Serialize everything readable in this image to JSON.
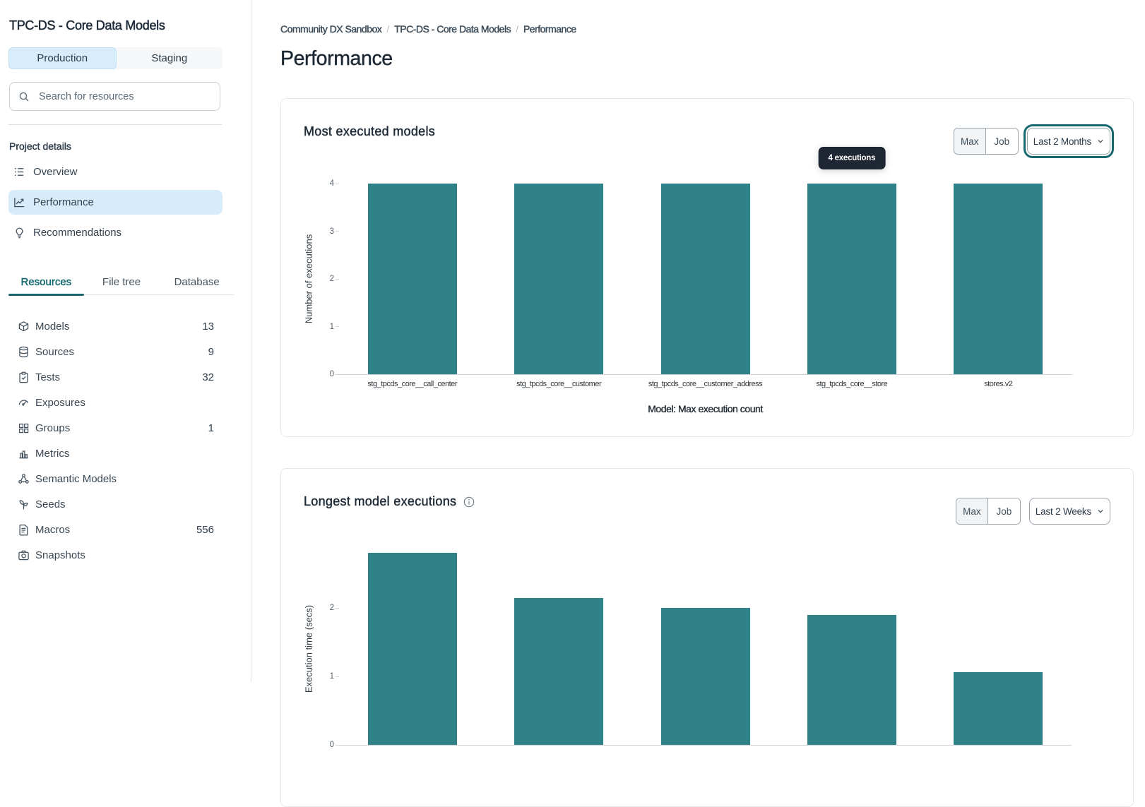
{
  "sidebar": {
    "project_title": "TPC-DS - Core Data Models",
    "env_tabs": [
      {
        "label": "Production",
        "active": true
      },
      {
        "label": "Staging",
        "active": false
      }
    ],
    "search": {
      "placeholder": "Search for resources"
    },
    "section_label": "Project details",
    "nav": [
      {
        "label": "Overview",
        "icon": "overview-icon",
        "active": false
      },
      {
        "label": "Performance",
        "icon": "performance-icon",
        "active": true
      },
      {
        "label": "Recommendations",
        "icon": "lightbulb-icon",
        "active": false
      }
    ],
    "resource_tabs": [
      {
        "label": "Resources",
        "active": true
      },
      {
        "label": "File tree",
        "active": false
      },
      {
        "label": "Database",
        "active": false
      }
    ],
    "resources": [
      {
        "label": "Models",
        "count": "13",
        "icon": "models-icon"
      },
      {
        "label": "Sources",
        "count": "9",
        "icon": "sources-icon"
      },
      {
        "label": "Tests",
        "count": "32",
        "icon": "tests-icon"
      },
      {
        "label": "Exposures",
        "count": "",
        "icon": "exposures-icon"
      },
      {
        "label": "Groups",
        "count": "1",
        "icon": "groups-icon"
      },
      {
        "label": "Metrics",
        "count": "",
        "icon": "metrics-icon"
      },
      {
        "label": "Semantic Models",
        "count": "",
        "icon": "semantic-models-icon"
      },
      {
        "label": "Seeds",
        "count": "",
        "icon": "seeds-icon"
      },
      {
        "label": "Macros",
        "count": "556",
        "icon": "macros-icon"
      },
      {
        "label": "Snapshots",
        "count": "",
        "icon": "snapshots-icon"
      }
    ]
  },
  "breadcrumb": {
    "items": [
      "Community DX Sandbox",
      "TPC-DS - Core Data Models",
      "Performance"
    ],
    "separator": "/"
  },
  "page_title": "Performance",
  "cards": [
    {
      "title": "Most executed models",
      "max_label": "Max",
      "job_label": "Job",
      "range_label": "Last 2 Months",
      "range_focused": true,
      "has_info_icon": false
    },
    {
      "title": "Longest model executions",
      "max_label": "Max",
      "job_label": "Job",
      "range_label": "Last 2 Weeks",
      "range_focused": false,
      "has_info_icon": true
    }
  ],
  "chart_data": [
    {
      "type": "bar",
      "title": "Most executed models",
      "categories": [
        "stg_tpcds_core__call_center",
        "stg_tpcds_core__customer",
        "stg_tpcds_core__customer_address",
        "stg_tpcds_core__store",
        "stores.v2"
      ],
      "values": [
        4,
        4,
        4,
        4,
        4
      ],
      "ylabel": "Number of executions",
      "xlabel": "Model: Max execution count",
      "ylim": [
        0,
        4
      ],
      "yticks": [
        0,
        1,
        2,
        3,
        4
      ],
      "bar_color": "#2F8288",
      "grid": false,
      "legend": null,
      "tooltip": {
        "text": "4 executions",
        "bar_index": 3
      }
    },
    {
      "type": "bar",
      "title": "Longest model executions",
      "categories": [
        "",
        "",
        "",
        "",
        ""
      ],
      "values": [
        2.81,
        2.15,
        2.0,
        1.9,
        1.06
      ],
      "ylabel": "Execution time (secs)",
      "xlabel": "",
      "ylim": [
        0,
        2.81
      ],
      "yticks": [
        0,
        1,
        2
      ],
      "bar_color": "#2F8288",
      "grid": false,
      "legend": null,
      "tooltip": null
    }
  ]
}
